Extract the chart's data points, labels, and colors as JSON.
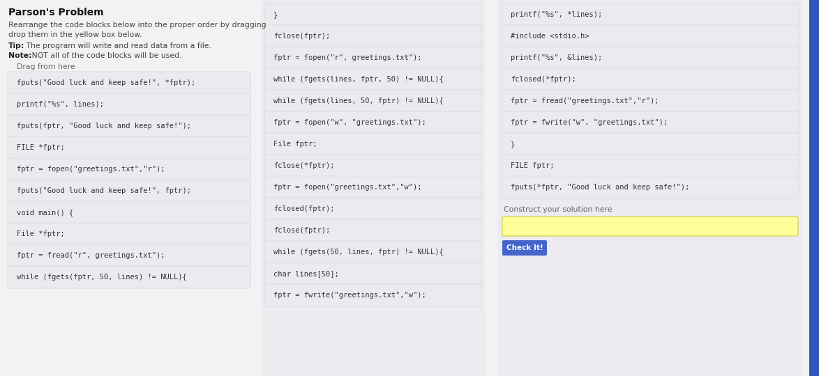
{
  "title": "Parson's Problem",
  "instructions_line1": "Rearrange the code blocks below into the proper order by dragging",
  "instructions_line2": "drop them in the yellow box below.",
  "tip_bold": "Tip:",
  "tip_text": " The program will write and read data from a file.",
  "note_bold": "Note:",
  "note_text": " NOT all of the code blocks will be used.",
  "drag_label": "Drag from here",
  "construct_label": "Construct your solution here",
  "button_text": "Check It!",
  "page_bg": "#f2f2f2",
  "left_panel_bg": "#f2f2f2",
  "mid_panel_bg": "#f2f2f2",
  "right_panel_bg": "#f2f2f2",
  "card_bg": "#ebebef",
  "card_border": "#d8d8e0",
  "yellow_box_color": "#ffff99",
  "button_bg": "#4466cc",
  "button_text_color": "#ffffff",
  "scrollbar_color": "#3355bb",
  "col1_blocks": [
    "fputs(\"Good luck and keep safe!\", *fptr);",
    "printf(\"%s\", lines);",
    "fputs(fptr, \"Good luck and keep safe!\");",
    "FILE *fptr;",
    "fptr = fopen(\"greetings.txt\",\"r\");",
    "fputs(\"Good luck and keep safe!\", fptr);",
    "void main() {",
    "File *fptr;",
    "fptr = fread(\"r\", greetings.txt\");",
    "while (fgets(fptr, 50, lines) != NULL){"
  ],
  "col2_blocks": [
    "}",
    "fclose(fptr);",
    "fptr = fopen(\"r\", greetings.txt\");",
    "while (fgets(lines, fptr, 50) != NULL){",
    "while (fgets(lines, 50, fptr) != NULL){",
    "fptr = fopen(\"w\", \"greetings.txt\");",
    "File fptr;",
    "fclose(*fptr);",
    "fptr = fopen(\"greetings.txt\",\"w\");",
    "fclosed(fptr);",
    "fclose(fptr);",
    "while (fgets(50, lines, fptr) != NULL){",
    "char lines[50];",
    "fptr = fwrite(\"greetings.txt\",\"w\");"
  ],
  "col3_blocks": [
    "printf(\"%s\", *lines);",
    "#include <stdio.h>",
    "printf(\"%s\", &lines);",
    "fclosed(*fptr);",
    "fptr = fread(\"greetings.txt\",\"r\");",
    "fptr = fwrite(\"w\", \"greetings.txt\");",
    "}",
    "FILE fptr;",
    "fputs(*fptr, \"Good luck and keep safe!\");"
  ]
}
